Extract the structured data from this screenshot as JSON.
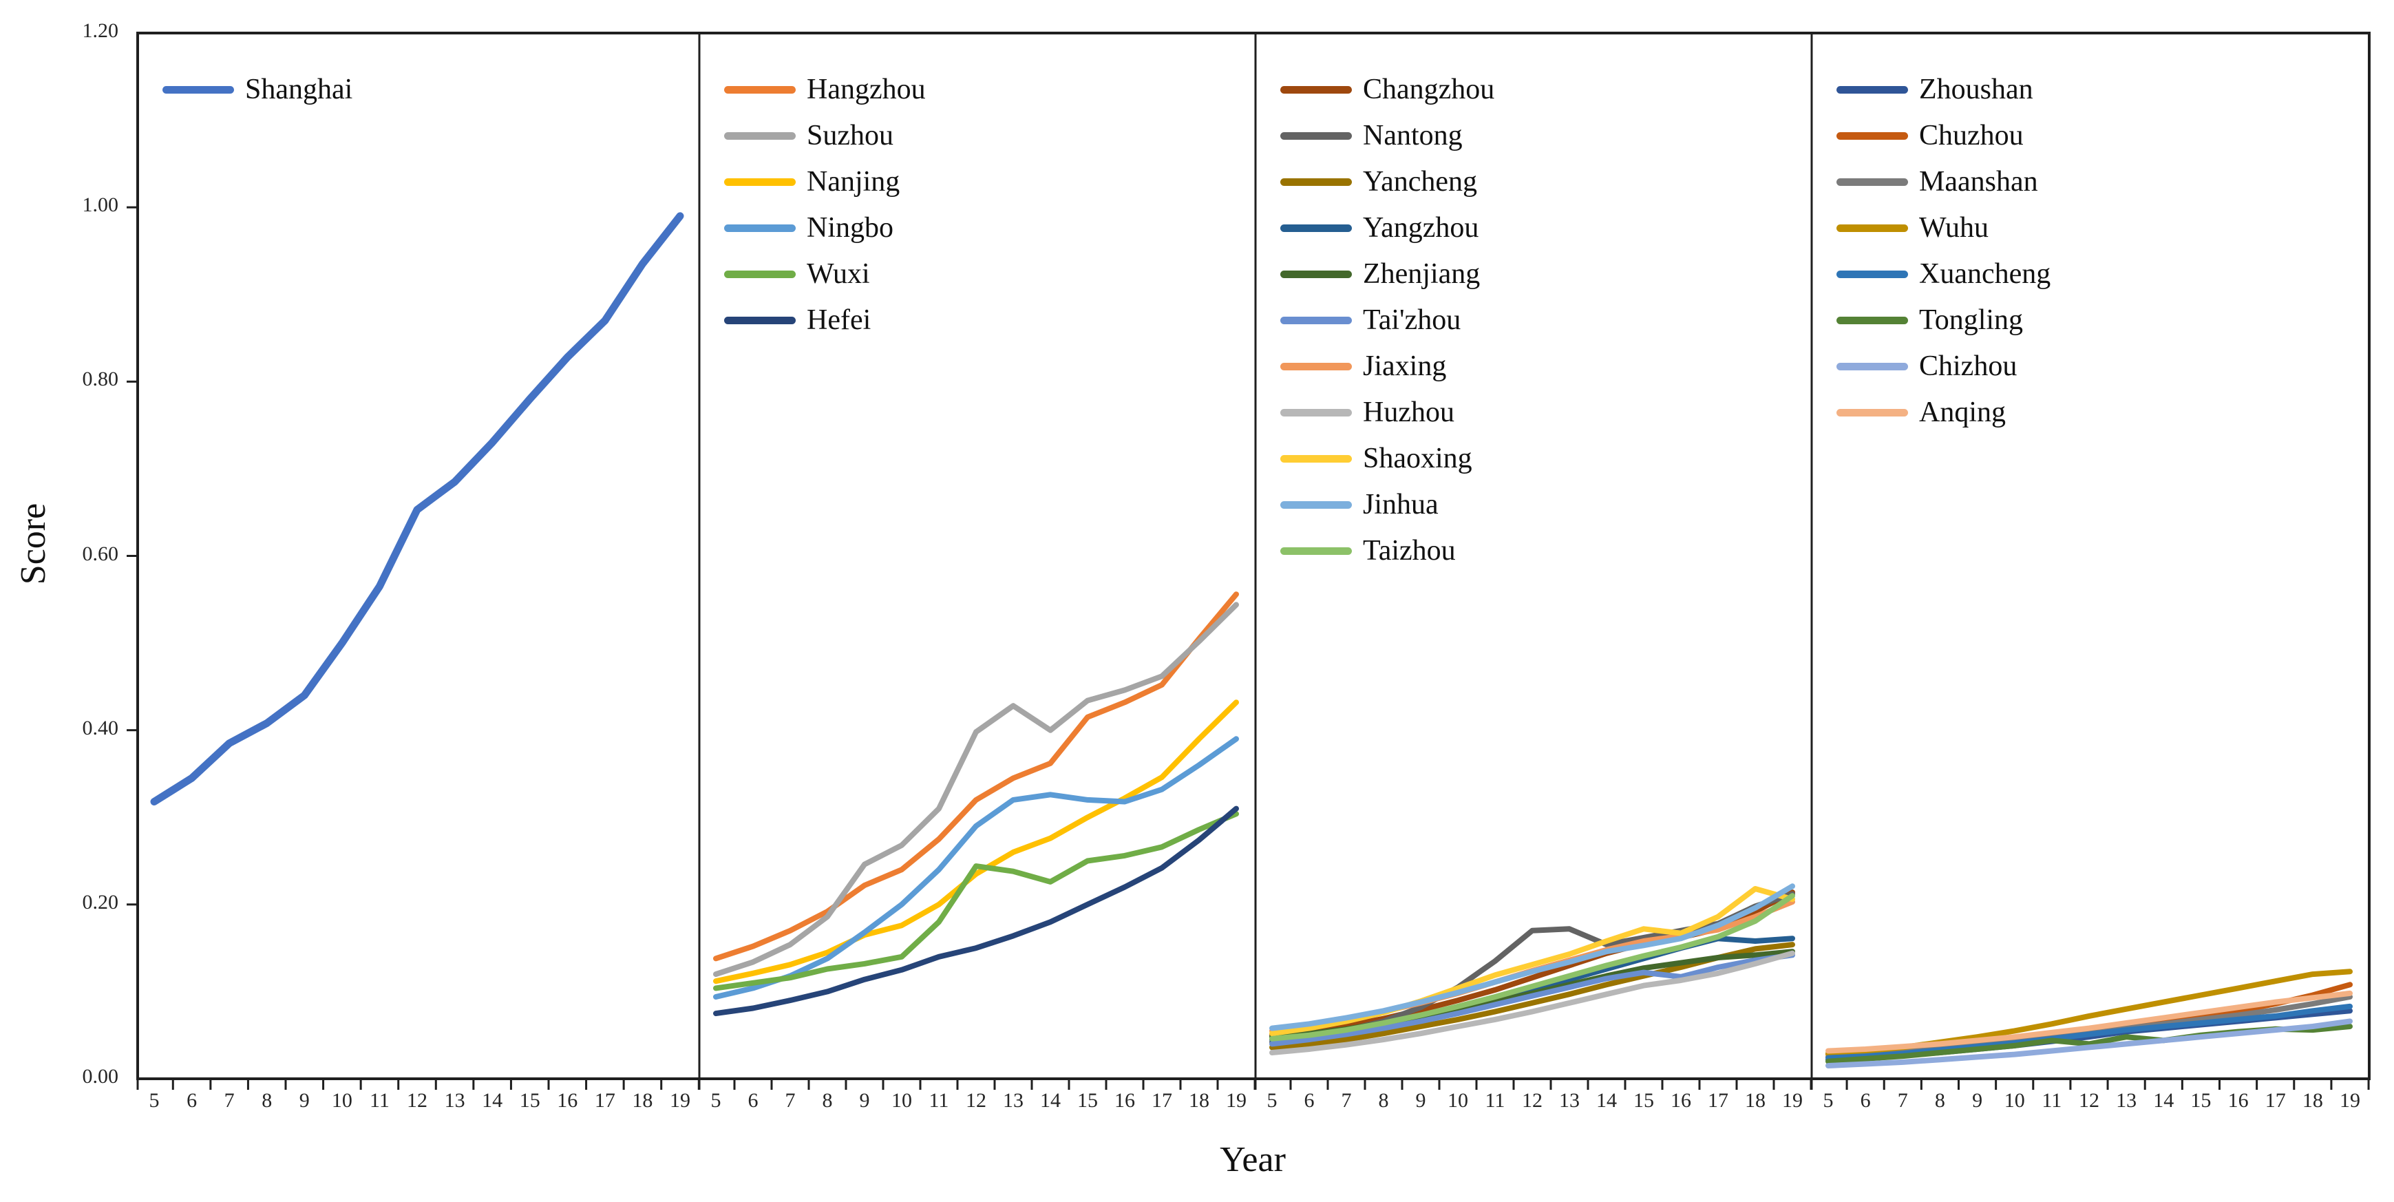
{
  "figure": {
    "background": "#ffffff",
    "axis_color": "#1f1f1f",
    "tick_label_color": "#262626",
    "text_color": "#111111"
  },
  "chart_data": {
    "type": "line",
    "title": "",
    "xlabel": "Year",
    "ylabel": "Score",
    "x": [
      5,
      6,
      7,
      8,
      9,
      10,
      11,
      12,
      13,
      14,
      15,
      16,
      17,
      18,
      19
    ],
    "ylim": [
      0,
      1.2
    ],
    "yticks": [
      "0.00",
      "0.20",
      "0.40",
      "0.60",
      "0.80",
      "1.00",
      "1.20"
    ],
    "grid": false,
    "legend_position": "top-left-of-each-panel",
    "panels": [
      {
        "name": "panel-1",
        "series": [
          {
            "name": "Shanghai",
            "color": "#4472C4",
            "values": [
              0.318,
              0.345,
              0.385,
              0.408,
              0.44,
              0.5,
              0.565,
              0.653,
              0.685,
              0.73,
              0.78,
              0.828,
              0.87,
              0.935,
              0.99
            ]
          }
        ]
      },
      {
        "name": "panel-2",
        "series": [
          {
            "name": "Hangzhou",
            "color": "#ED7D31",
            "values": [
              0.138,
              0.152,
              0.17,
              0.192,
              0.222,
              0.24,
              0.275,
              0.32,
              0.345,
              0.362,
              0.415,
              0.432,
              0.452,
              0.505,
              0.556
            ]
          },
          {
            "name": "Suzhou",
            "color": "#A5A5A5",
            "values": [
              0.12,
              0.134,
              0.154,
              0.186,
              0.246,
              0.268,
              0.31,
              0.398,
              0.428,
              0.4,
              0.434,
              0.446,
              0.462,
              0.502,
              0.544
            ]
          },
          {
            "name": "Nanjing",
            "color": "#FFC000",
            "values": [
              0.112,
              0.121,
              0.131,
              0.145,
              0.165,
              0.176,
              0.2,
              0.235,
              0.26,
              0.276,
              0.3,
              0.322,
              0.346,
              0.39,
              0.432
            ]
          },
          {
            "name": "Ningbo",
            "color": "#5B9BD5",
            "values": [
              0.094,
              0.104,
              0.118,
              0.138,
              0.168,
              0.2,
              0.24,
              0.29,
              0.32,
              0.326,
              0.32,
              0.318,
              0.332,
              0.36,
              0.39
            ]
          },
          {
            "name": "Wuxi",
            "color": "#70AD47",
            "values": [
              0.104,
              0.11,
              0.116,
              0.126,
              0.132,
              0.14,
              0.18,
              0.244,
              0.238,
              0.226,
              0.25,
              0.256,
              0.266,
              0.286,
              0.304
            ]
          },
          {
            "name": "Hefei",
            "color": "#264478",
            "values": [
              0.075,
              0.081,
              0.09,
              0.1,
              0.114,
              0.125,
              0.14,
              0.15,
              0.164,
              0.18,
              0.2,
              0.22,
              0.242,
              0.274,
              0.31
            ]
          }
        ]
      },
      {
        "name": "panel-3",
        "series": [
          {
            "name": "Changzhou",
            "color": "#9E480E",
            "values": [
              0.05,
              0.055,
              0.061,
              0.069,
              0.079,
              0.09,
              0.102,
              0.116,
              0.13,
              0.144,
              0.155,
              0.162,
              0.172,
              0.192,
              0.214
            ]
          },
          {
            "name": "Nantong",
            "color": "#636363",
            "values": [
              0.042,
              0.048,
              0.056,
              0.066,
              0.082,
              0.105,
              0.135,
              0.17,
              0.172,
              0.154,
              0.162,
              0.17,
              0.178,
              0.198,
              0.212
            ]
          },
          {
            "name": "Yancheng",
            "color": "#997300",
            "values": [
              0.036,
              0.04,
              0.045,
              0.052,
              0.06,
              0.068,
              0.077,
              0.087,
              0.097,
              0.108,
              0.118,
              0.128,
              0.139,
              0.149,
              0.154
            ]
          },
          {
            "name": "Yangzhou",
            "color": "#255E91",
            "values": [
              0.045,
              0.05,
              0.056,
              0.063,
              0.072,
              0.082,
              0.092,
              0.103,
              0.114,
              0.126,
              0.138,
              0.15,
              0.161,
              0.158,
              0.161
            ]
          },
          {
            "name": "Zhenjiang",
            "color": "#43682B",
            "values": [
              0.048,
              0.052,
              0.057,
              0.064,
              0.072,
              0.08,
              0.089,
              0.098,
              0.108,
              0.118,
              0.127,
              0.133,
              0.139,
              0.142,
              0.146
            ]
          },
          {
            "name": "Tai'zhou",
            "color": "#698ED0",
            "values": [
              0.04,
              0.045,
              0.051,
              0.058,
              0.066,
              0.075,
              0.085,
              0.095,
              0.105,
              0.115,
              0.122,
              0.117,
              0.128,
              0.136,
              0.142
            ]
          },
          {
            "name": "Jiaxing",
            "color": "#F1975A",
            "values": [
              0.055,
              0.061,
              0.068,
              0.077,
              0.087,
              0.098,
              0.111,
              0.124,
              0.136,
              0.148,
              0.158,
              0.164,
              0.171,
              0.186,
              0.203
            ]
          },
          {
            "name": "Huzhou",
            "color": "#B7B7B7",
            "values": [
              0.03,
              0.034,
              0.039,
              0.045,
              0.052,
              0.06,
              0.068,
              0.077,
              0.087,
              0.097,
              0.107,
              0.113,
              0.121,
              0.132,
              0.144
            ]
          },
          {
            "name": "Shaoxing",
            "color": "#FFCD33",
            "values": [
              0.052,
              0.058,
              0.066,
              0.076,
              0.089,
              0.104,
              0.119,
              0.131,
              0.143,
              0.158,
              0.172,
              0.167,
              0.186,
              0.218,
              0.206
            ]
          },
          {
            "name": "Jinhua",
            "color": "#7CAFDD",
            "values": [
              0.058,
              0.063,
              0.07,
              0.078,
              0.088,
              0.099,
              0.111,
              0.123,
              0.134,
              0.146,
              0.153,
              0.161,
              0.176,
              0.196,
              0.221
            ]
          },
          {
            "name": "Taizhou",
            "color": "#8CC168",
            "values": [
              0.046,
              0.05,
              0.056,
              0.064,
              0.073,
              0.083,
              0.094,
              0.106,
              0.118,
              0.13,
              0.141,
              0.151,
              0.163,
              0.181,
              0.21
            ]
          }
        ]
      },
      {
        "name": "panel-4",
        "series": [
          {
            "name": "Zhoushan",
            "color": "#2F5597",
            "values": [
              0.022,
              0.024,
              0.027,
              0.03,
              0.034,
              0.038,
              0.043,
              0.048,
              0.054,
              0.058,
              0.062,
              0.066,
              0.07,
              0.074,
              0.078
            ]
          },
          {
            "name": "Chuzhou",
            "color": "#C55A11",
            "values": [
              0.028,
              0.03,
              0.033,
              0.037,
              0.041,
              0.046,
              0.051,
              0.056,
              0.061,
              0.066,
              0.072,
              0.078,
              0.086,
              0.096,
              0.108
            ]
          },
          {
            "name": "Maanshan",
            "color": "#7B7B7B",
            "values": [
              0.025,
              0.028,
              0.032,
              0.036,
              0.04,
              0.044,
              0.048,
              0.053,
              0.058,
              0.063,
              0.068,
              0.073,
              0.079,
              0.086,
              0.094
            ]
          },
          {
            "name": "Wuhu",
            "color": "#BF8F00",
            "values": [
              0.029,
              0.032,
              0.036,
              0.042,
              0.048,
              0.055,
              0.063,
              0.072,
              0.08,
              0.088,
              0.096,
              0.104,
              0.112,
              0.12,
              0.123
            ]
          },
          {
            "name": "Xuancheng",
            "color": "#2E75B6",
            "values": [
              0.024,
              0.026,
              0.029,
              0.033,
              0.037,
              0.041,
              0.046,
              0.051,
              0.056,
              0.06,
              0.064,
              0.068,
              0.072,
              0.078,
              0.083
            ]
          },
          {
            "name": "Tongling",
            "color": "#548235",
            "values": [
              0.02,
              0.023,
              0.026,
              0.03,
              0.034,
              0.038,
              0.044,
              0.04,
              0.048,
              0.044,
              0.05,
              0.054,
              0.057,
              0.056,
              0.06
            ]
          },
          {
            "name": "Chizhou",
            "color": "#8FAADC",
            "values": [
              0.015,
              0.017,
              0.019,
              0.022,
              0.025,
              0.028,
              0.032,
              0.036,
              0.04,
              0.044,
              0.048,
              0.052,
              0.056,
              0.06,
              0.066
            ]
          },
          {
            "name": "Anqing",
            "color": "#F4B183",
            "values": [
              0.032,
              0.034,
              0.037,
              0.04,
              0.044,
              0.048,
              0.053,
              0.058,
              0.064,
              0.07,
              0.076,
              0.082,
              0.088,
              0.093,
              0.098
            ]
          }
        ]
      }
    ]
  }
}
